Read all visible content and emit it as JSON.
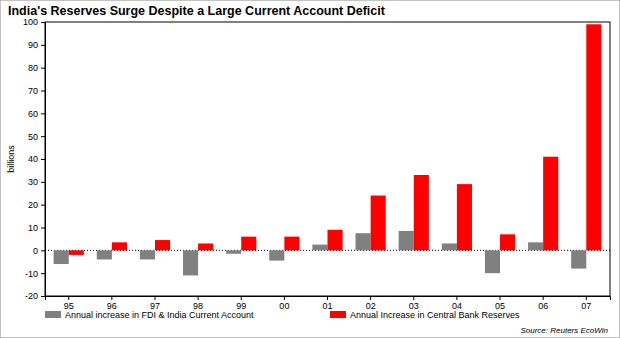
{
  "chart_data": {
    "type": "bar",
    "title": "India's Reserves Surge Despite a Large Current Account Deficit",
    "y_label": "billions",
    "source": "Source: Reuters EcoWin",
    "categories": [
      "95",
      "96",
      "97",
      "98",
      "99",
      "00",
      "01",
      "02",
      "03",
      "04",
      "05",
      "06",
      "07"
    ],
    "series": [
      {
        "name": "Annual increase in FDI & India Current Account",
        "color": "#808080",
        "values": [
          -6,
          -4,
          -4,
          -11,
          -1.5,
          -4.5,
          2.5,
          7.5,
          8.5,
          3,
          -10,
          3.5,
          -8
        ]
      },
      {
        "name": "Annual Increase in Central Bank Reserves",
        "color": "#ff0000",
        "values": [
          -2,
          3.5,
          4.5,
          3,
          6,
          6,
          9,
          24,
          33,
          29,
          7,
          41,
          99
        ]
      }
    ],
    "ylim": [
      -20,
      100
    ],
    "yticks": [
      -20,
      -10,
      0,
      10,
      20,
      30,
      40,
      50,
      60,
      70,
      80,
      90,
      100
    ],
    "grid": false,
    "legend": "bottom"
  }
}
